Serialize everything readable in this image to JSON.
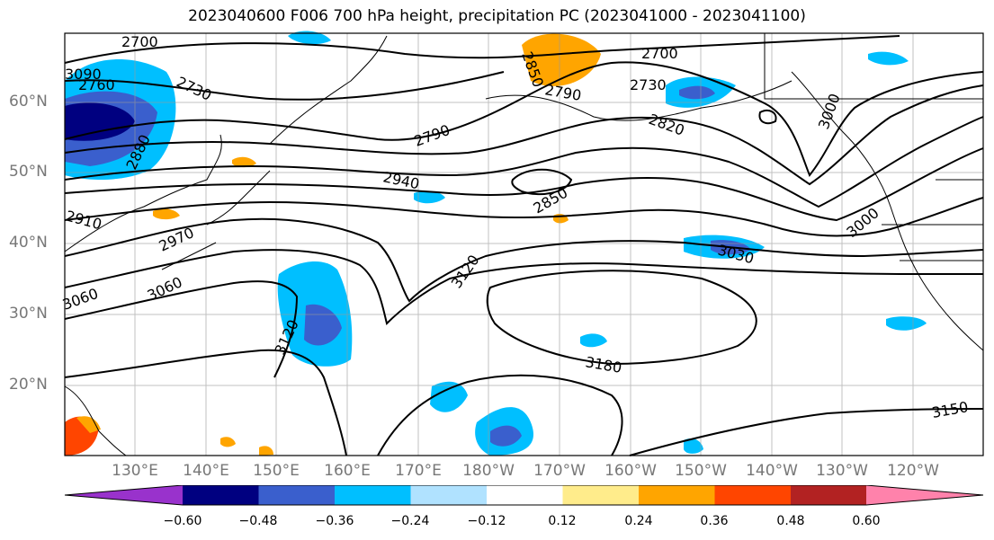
{
  "title": "2023040600 F006 700 hPa height, precipitation PC (2023041000 - 2023041100)",
  "lat_labels": [
    "60°N",
    "50°N",
    "40°N",
    "30°N",
    "20°N"
  ],
  "lon_labels": [
    "130°E",
    "140°E",
    "150°E",
    "160°E",
    "170°E",
    "180°W",
    "170°W",
    "160°W",
    "150°W",
    "140°W",
    "130°W",
    "120°W"
  ],
  "colorbar": {
    "ticks": [
      "−0.60",
      "−0.48",
      "−0.36",
      "−0.24",
      "−0.12",
      "0.12",
      "0.24",
      "0.36",
      "0.48",
      "0.60"
    ],
    "colors": [
      "#9932cc",
      "#000080",
      "#3a5fcd",
      "#00bfff",
      "#b0e2ff",
      "#ffffff",
      "#ffec8b",
      "#ffa500",
      "#ff4500",
      "#b22222",
      "#ff82ab"
    ]
  },
  "contour_labels": [
    "2700",
    "2760",
    "2730",
    "2700",
    "2730",
    "2790",
    "2790",
    "2820",
    "2880",
    "2940",
    "2850",
    "2910",
    "2970",
    "3000",
    "3030",
    "3060",
    "3060",
    "3120",
    "3120",
    "3180",
    "3150",
    "3090",
    "2850",
    "3000"
  ],
  "legend_colors": {
    "cool1": "#00bfff",
    "cool2": "#3a5fcd",
    "cool3": "#000080",
    "warm1": "#ffa500",
    "warm2": "#ffec8b",
    "warm3": "#ff4500"
  }
}
